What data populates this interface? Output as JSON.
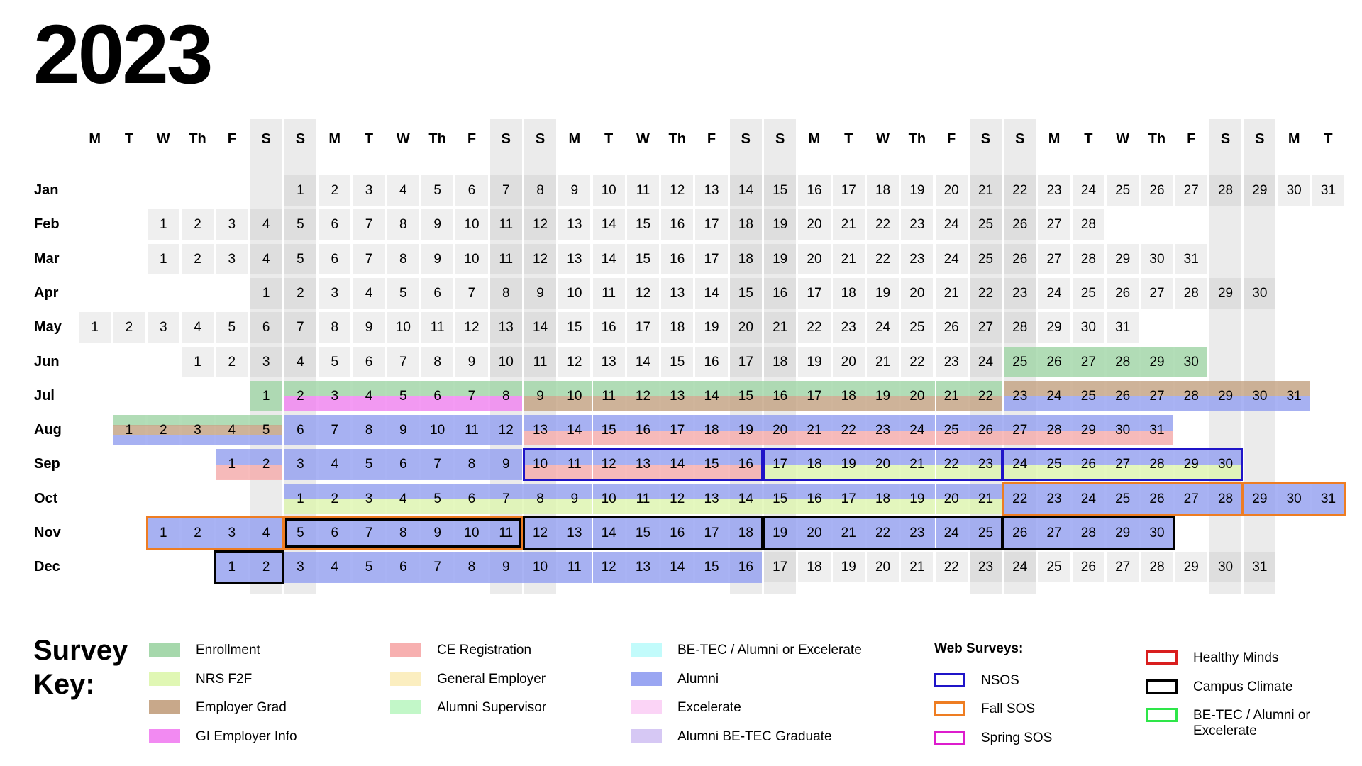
{
  "year": "2023",
  "day_headers": [
    "M",
    "T",
    "W",
    "Th",
    "F",
    "S",
    "S",
    "M",
    "T",
    "W",
    "Th",
    "F",
    "S",
    "S",
    "M",
    "T",
    "W",
    "Th",
    "F",
    "S",
    "S",
    "M",
    "T",
    "W",
    "Th",
    "F",
    "S",
    "S",
    "M",
    "T",
    "W",
    "Th",
    "F",
    "S",
    "S",
    "M",
    "T"
  ],
  "months": [
    {
      "name": "Jan",
      "start": 6,
      "days": 31
    },
    {
      "name": "Feb",
      "start": 2,
      "days": 28
    },
    {
      "name": "Mar",
      "start": 2,
      "days": 31
    },
    {
      "name": "Apr",
      "start": 5,
      "days": 30
    },
    {
      "name": "May",
      "start": 0,
      "days": 31
    },
    {
      "name": "Jun",
      "start": 3,
      "days": 30
    },
    {
      "name": "Jul",
      "start": 5,
      "days": 31
    },
    {
      "name": "Aug",
      "start": 1,
      "days": 31
    },
    {
      "name": "Sep",
      "start": 4,
      "days": 30
    },
    {
      "name": "Oct",
      "start": 6,
      "days": 31
    },
    {
      "name": "Nov",
      "start": 2,
      "days": 30
    },
    {
      "name": "Dec",
      "start": 4,
      "days": 31
    }
  ],
  "survey_periods": [
    {
      "month": 5,
      "from": 25,
      "to": 30,
      "stripes": [
        "enrollment"
      ]
    },
    {
      "month": 6,
      "from": 1,
      "to": 1,
      "stripes": [
        "enrollment"
      ]
    },
    {
      "month": 6,
      "from": 2,
      "to": 8,
      "stripes": [
        "enrollment",
        "gi_employer_info"
      ]
    },
    {
      "month": 6,
      "from": 9,
      "to": 22,
      "stripes": [
        "enrollment",
        "employer_grad"
      ]
    },
    {
      "month": 6,
      "from": 23,
      "to": 31,
      "stripes": [
        "employer_grad",
        "alumni"
      ]
    },
    {
      "month": 7,
      "from": 1,
      "to": 5,
      "stripes": [
        "enrollment",
        "employer_grad",
        "alumni"
      ]
    },
    {
      "month": 7,
      "from": 6,
      "to": 12,
      "stripes": [
        "alumni"
      ]
    },
    {
      "month": 7,
      "from": 13,
      "to": 31,
      "stripes": [
        "alumni",
        "ce_registration"
      ]
    },
    {
      "month": 8,
      "from": 1,
      "to": 2,
      "stripes": [
        "alumni",
        "ce_registration"
      ]
    },
    {
      "month": 8,
      "from": 3,
      "to": 9,
      "stripes": [
        "alumni"
      ]
    },
    {
      "month": 8,
      "from": 10,
      "to": 16,
      "stripes": [
        "alumni",
        "ce_registration"
      ]
    },
    {
      "month": 8,
      "from": 17,
      "to": 30,
      "stripes": [
        "alumni",
        "nrs_f2f"
      ]
    },
    {
      "month": 9,
      "from": 1,
      "to": 21,
      "stripes": [
        "alumni",
        "nrs_f2f"
      ]
    },
    {
      "month": 9,
      "from": 22,
      "to": 31,
      "stripes": [
        "alumni"
      ]
    },
    {
      "month": 10,
      "from": 1,
      "to": 30,
      "stripes": [
        "alumni"
      ]
    },
    {
      "month": 11,
      "from": 1,
      "to": 16,
      "stripes": [
        "alumni"
      ]
    }
  ],
  "web_boxes": [
    {
      "month": 8,
      "from": 10,
      "to": 16,
      "survey": "nsos"
    },
    {
      "month": 8,
      "from": 17,
      "to": 23,
      "survey": "nsos"
    },
    {
      "month": 8,
      "from": 24,
      "to": 30,
      "survey": "nsos"
    },
    {
      "month": 9,
      "from": 22,
      "to": 28,
      "survey": "fall_sos"
    },
    {
      "month": 9,
      "from": 29,
      "to": 31,
      "survey": "fall_sos"
    },
    {
      "month": 10,
      "from": 1,
      "to": 4,
      "survey": "fall_sos"
    },
    {
      "month": 10,
      "from": 5,
      "to": 11,
      "survey": "fall_sos"
    },
    {
      "month": 10,
      "from": 5,
      "to": 11,
      "survey": "campus_climate"
    },
    {
      "month": 10,
      "from": 12,
      "to": 18,
      "survey": "campus_climate"
    },
    {
      "month": 10,
      "from": 19,
      "to": 25,
      "survey": "campus_climate"
    },
    {
      "month": 10,
      "from": 26,
      "to": 30,
      "survey": "campus_climate"
    },
    {
      "month": 11,
      "from": 1,
      "to": 2,
      "survey": "campus_climate"
    }
  ],
  "colors": {
    "enrollment": "#a6d8ac",
    "nrs_f2f": "#e0f7b4",
    "employer_grad": "#c8a88a",
    "gi_employer_info": "#f28af2",
    "ce_registration": "#f7b0b0",
    "general_employer": "#fbeec0",
    "alumni_supervisor": "#c2f7c8",
    "be_tec_alumni_excelerate": "#c2fbfb",
    "alumni": "#9aa6f2",
    "excelerate": "#fbd4f6",
    "alumni_be_tec_graduate": "#d6c8f4",
    "nsos": "#1f14c8",
    "fall_sos": "#ee7d22",
    "spring_sos": "#dd1ccd",
    "healthy_minds": "#d91e1e",
    "campus_climate": "#000000",
    "be_tec_web": "#2ee649"
  },
  "key": {
    "title_line1": "Survey",
    "title_line2": "Key:",
    "web_title": "Web Surveys:",
    "items": [
      {
        "label": "Enrollment",
        "color": "enrollment",
        "kind": "fill"
      },
      {
        "label": "NRS F2F",
        "color": "nrs_f2f",
        "kind": "fill"
      },
      {
        "label": "Employer Grad",
        "color": "employer_grad",
        "kind": "fill"
      },
      {
        "label": "GI Employer Info",
        "color": "gi_employer_info",
        "kind": "fill"
      },
      {
        "label": "CE Registration",
        "color": "ce_registration",
        "kind": "fill"
      },
      {
        "label": "General Employer",
        "color": "general_employer",
        "kind": "fill"
      },
      {
        "label": "Alumni Supervisor",
        "color": "alumni_supervisor",
        "kind": "fill"
      },
      {
        "label": "BE-TEC / Alumni or Excelerate",
        "color": "be_tec_alumni_excelerate",
        "kind": "fill"
      },
      {
        "label": "Alumni",
        "color": "alumni",
        "kind": "fill"
      },
      {
        "label": "Excelerate",
        "color": "excelerate",
        "kind": "fill"
      },
      {
        "label": "Alumni BE-TEC Graduate",
        "color": "alumni_be_tec_graduate",
        "kind": "fill"
      },
      {
        "label": "NSOS",
        "color": "nsos",
        "kind": "outline"
      },
      {
        "label": "Fall SOS",
        "color": "fall_sos",
        "kind": "outline"
      },
      {
        "label": "Spring SOS",
        "color": "spring_sos",
        "kind": "outline"
      },
      {
        "label": "Healthy Minds",
        "color": "healthy_minds",
        "kind": "outline"
      },
      {
        "label": "Campus Climate",
        "color": "campus_climate",
        "kind": "outline"
      },
      {
        "label": "BE-TEC / Alumni or Excelerate",
        "color": "be_tec_web",
        "kind": "outline"
      }
    ]
  }
}
